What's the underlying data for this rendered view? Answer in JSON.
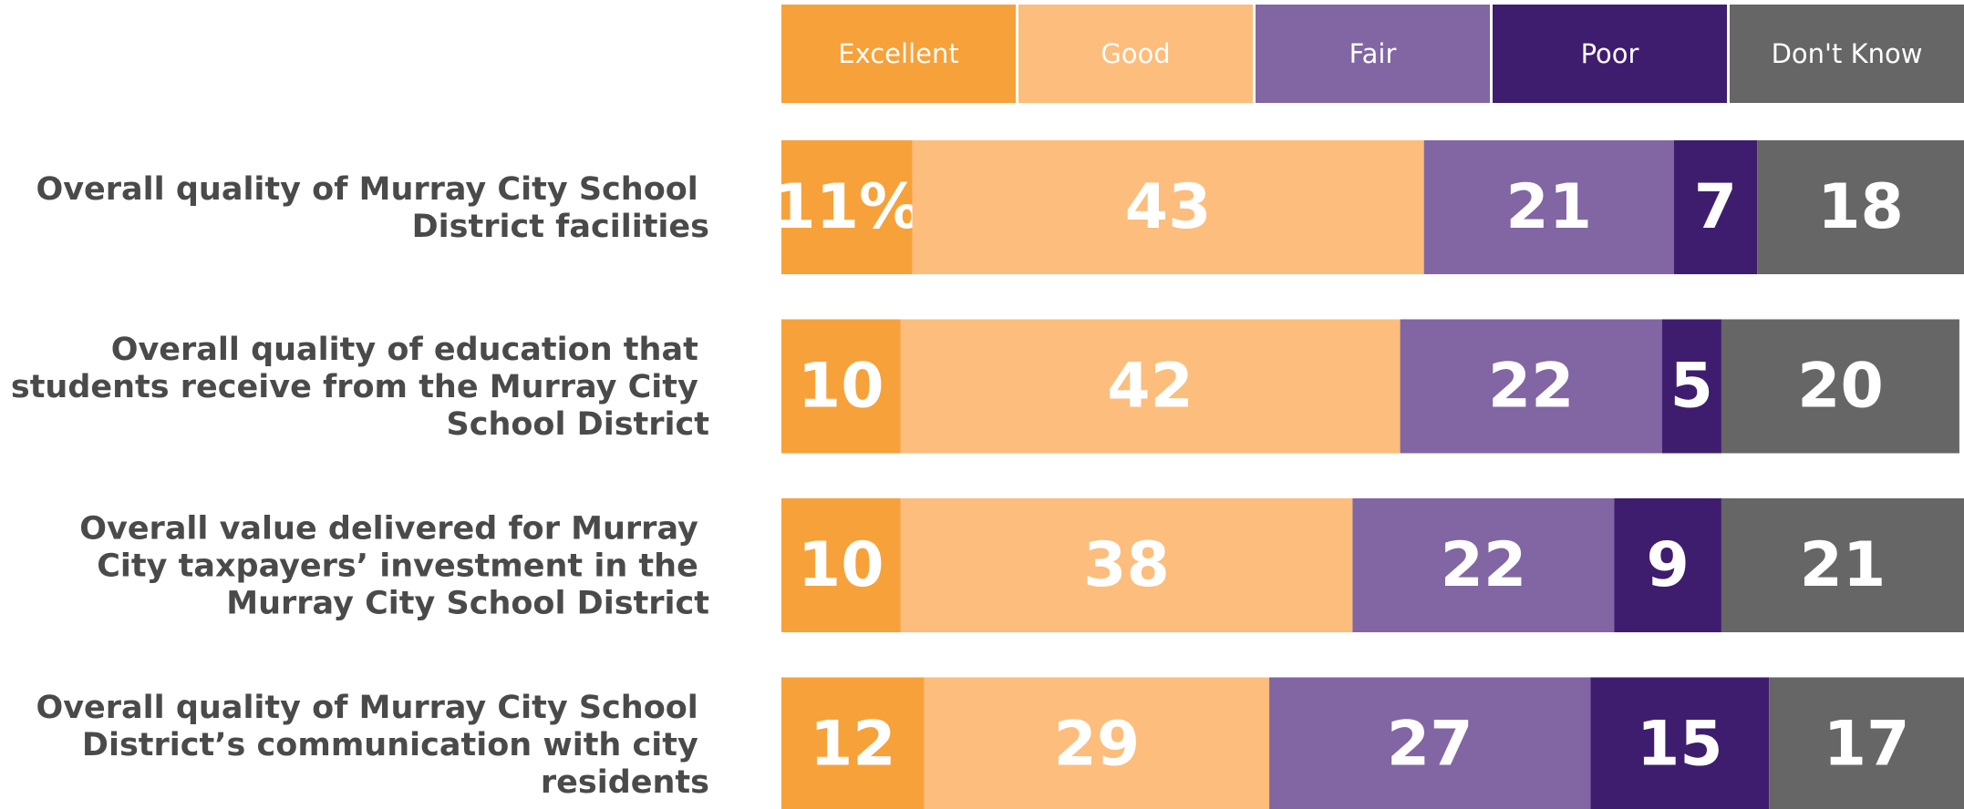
{
  "chart_data": {
    "type": "stacked-bar-horizontal",
    "categories": [
      "Overall quality of Murray City School District facilities",
      "Overall quality of education that students receive from the Murray City School District",
      "Overall value delivered for Murray City taxpayers’ investment in the Murray City School District",
      "Overall quality of Murray City School District’s communication with city residents"
    ],
    "series": [
      {
        "name": "Excellent",
        "color": "#f7a13a",
        "values": [
          11,
          10,
          10,
          12
        ],
        "value_labels": [
          "11%",
          "10",
          "10",
          "12"
        ]
      },
      {
        "name": "Good",
        "color": "#fdbd7c",
        "values": [
          43,
          42,
          38,
          29
        ]
      },
      {
        "name": "Fair",
        "color": "#8166a3",
        "values": [
          21,
          22,
          22,
          27
        ]
      },
      {
        "name": "Poor",
        "color": "#3f1d6e",
        "values": [
          7,
          5,
          9,
          15
        ]
      },
      {
        "name": "Don't Know",
        "color": "#666666",
        "values": [
          18,
          20,
          21,
          17
        ]
      }
    ],
    "xlim": [
      0,
      100
    ],
    "legend": "top"
  }
}
